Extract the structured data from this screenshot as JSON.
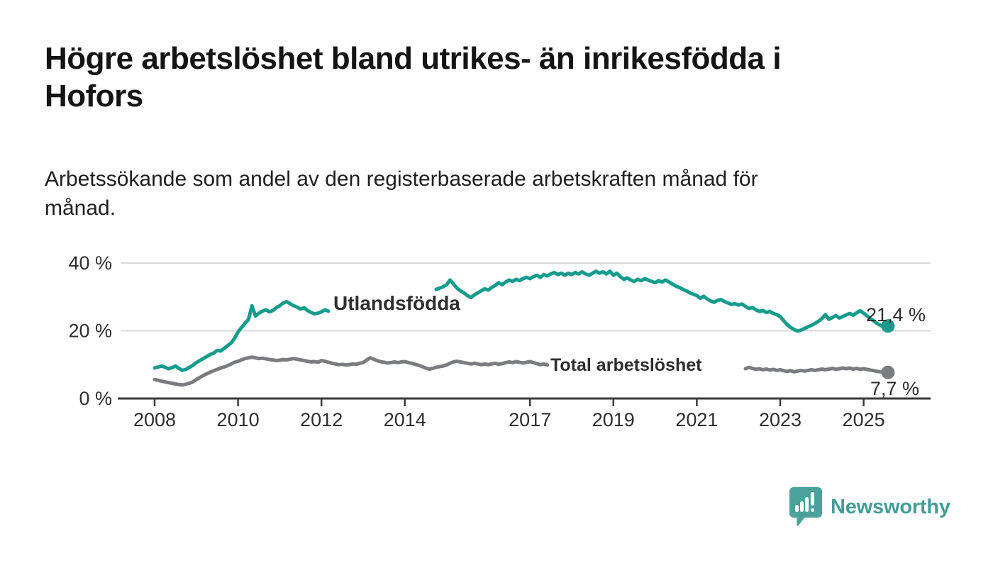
{
  "header": {
    "title_lines": [
      "Högre arbetslöshet bland utrikes- än inrikesfödda i",
      "Hofors"
    ],
    "subtitle_lines": [
      "Arbetssökande som andel av den registerbaserade arbetskraften månad för",
      "månad."
    ]
  },
  "footer": {
    "brand": "Newsworthy",
    "brand_color": "#419e97",
    "logo_icon": "speech-bubble-with-bar-chart"
  },
  "chart_data": {
    "type": "line",
    "title": "Högre arbetslöshet bland utrikes- än inrikesfödda i Hofors",
    "subtitle": "Arbetssökande som andel av den registerbaserade arbetskraften månad för månad.",
    "x_start": "2008-01",
    "x_end": "2025-08",
    "x_interval": "monthly",
    "x_ticks": [
      "2008",
      "2010",
      "2012",
      "2014",
      "2017",
      "2019",
      "2021",
      "2023",
      "2025"
    ],
    "y_ticks": [
      "0 %",
      "20 %",
      "40 %"
    ],
    "y_tick_values": [
      0,
      20,
      40
    ],
    "ylim": [
      0,
      40
    ],
    "y_unit": "%",
    "grid": "horizontal",
    "legend": "inline-labels-on-lines",
    "colors": {
      "axis": "#3b3b3b",
      "gridline": "#d8d8d8",
      "value_label": "#1c1c1c"
    },
    "series": [
      {
        "name": "Utlandsfödda",
        "color": "#169c8d",
        "end_label": "21,4 %",
        "end_value": 21.4,
        "label_gap": [
          51,
          80
        ],
        "values": [
          9.0,
          9.3,
          9.6,
          9.2,
          8.8,
          9.1,
          9.6,
          8.9,
          8.3,
          8.6,
          9.2,
          9.8,
          10.6,
          11.2,
          11.8,
          12.4,
          13.0,
          13.4,
          14.2,
          14.0,
          14.8,
          15.6,
          16.4,
          17.8,
          19.6,
          21.0,
          22.2,
          23.3,
          27.4,
          24.4,
          25.2,
          25.8,
          26.2,
          25.6,
          26.0,
          26.8,
          27.4,
          28.2,
          28.6,
          28.0,
          27.4,
          27.0,
          26.4,
          26.8,
          26.0,
          25.4,
          25.0,
          25.2,
          25.6,
          26.2,
          25.8,
          26.4,
          26.0,
          26.6,
          27.2,
          26.8,
          27.4,
          27.0,
          27.6,
          28.0,
          28.4,
          28.8,
          28.4,
          29.0,
          29.6,
          29.2,
          29.8,
          30.2,
          29.8,
          30.4,
          30.0,
          30.6,
          30.2,
          30.8,
          31.2,
          30.8,
          31.4,
          31.0,
          31.6,
          32.0,
          31.6,
          32.2,
          32.6,
          33.0,
          33.6,
          35.0,
          33.8,
          32.6,
          31.8,
          31.2,
          30.4,
          29.8,
          30.6,
          31.2,
          31.8,
          32.4,
          32.0,
          32.8,
          33.4,
          34.2,
          33.6,
          34.4,
          35.0,
          34.6,
          35.2,
          34.8,
          35.4,
          35.8,
          35.4,
          36.0,
          36.4,
          35.8,
          36.6,
          36.2,
          36.8,
          37.2,
          36.6,
          37.0,
          36.4,
          37.0,
          36.6,
          37.2,
          36.8,
          37.4,
          36.8,
          36.4,
          37.0,
          37.6,
          37.0,
          37.4,
          36.8,
          37.6,
          36.4,
          37.0,
          36.0,
          35.2,
          35.6,
          35.0,
          34.6,
          35.2,
          34.8,
          35.4,
          35.0,
          34.6,
          34.2,
          34.8,
          34.4,
          35.0,
          34.4,
          33.8,
          33.2,
          32.8,
          32.2,
          31.8,
          31.2,
          30.8,
          30.4,
          29.6,
          30.2,
          29.4,
          28.8,
          28.4,
          29.0,
          29.2,
          28.6,
          28.2,
          27.8,
          28.0,
          27.6,
          27.9,
          27.2,
          26.6,
          26.9,
          26.2,
          25.7,
          26.0,
          25.4,
          25.7,
          25.1,
          24.8,
          24.2,
          23.0,
          21.8,
          21.0,
          20.4,
          19.9,
          20.2,
          20.7,
          21.2,
          21.6,
          22.2,
          22.8,
          23.6,
          24.8,
          23.4,
          23.9,
          24.5,
          23.8,
          24.2,
          24.7,
          25.1,
          24.6,
          25.3,
          25.9,
          25.2,
          24.4,
          23.6,
          22.8,
          22.1,
          21.5,
          21.1,
          21.4
        ]
      },
      {
        "name": "Total arbetslöshet",
        "color": "#7b7c80",
        "end_label": "7,7 %",
        "end_value": 7.7,
        "label_gap": [
          114,
          169
        ],
        "values": [
          5.6,
          5.4,
          5.1,
          4.9,
          4.7,
          4.5,
          4.3,
          4.1,
          4.0,
          4.2,
          4.5,
          4.9,
          5.6,
          6.2,
          6.8,
          7.3,
          7.8,
          8.2,
          8.6,
          9.0,
          9.3,
          9.7,
          10.2,
          10.7,
          11.0,
          11.4,
          11.8,
          12.0,
          12.2,
          12.0,
          11.8,
          11.9,
          11.7,
          11.5,
          11.4,
          11.2,
          11.3,
          11.5,
          11.4,
          11.6,
          11.8,
          11.6,
          11.4,
          11.2,
          11.0,
          10.8,
          10.9,
          10.7,
          11.2,
          11.0,
          10.7,
          10.4,
          10.2,
          10.0,
          10.1,
          9.9,
          10.0,
          10.2,
          10.1,
          10.4,
          10.6,
          11.4,
          12.0,
          11.6,
          11.2,
          10.9,
          10.7,
          10.5,
          10.6,
          10.8,
          10.6,
          10.8,
          10.9,
          10.6,
          10.4,
          10.1,
          9.8,
          9.4,
          9.0,
          8.7,
          8.9,
          9.2,
          9.4,
          9.6,
          9.9,
          10.4,
          10.8,
          11.0,
          10.8,
          10.6,
          10.4,
          10.2,
          10.4,
          10.2,
          10.0,
          10.2,
          10.0,
          10.2,
          10.4,
          10.1,
          10.3,
          10.6,
          10.8,
          10.6,
          10.9,
          10.7,
          10.5,
          10.7,
          10.9,
          10.6,
          10.3,
          10.0,
          10.2,
          9.9,
          9.7,
          9.9,
          9.6,
          9.8,
          9.5,
          9.7,
          9.5,
          9.7,
          9.4,
          9.6,
          9.3,
          9.5,
          9.2,
          9.4,
          9.1,
          9.3,
          9.0,
          9.2,
          9.0,
          9.2,
          8.9,
          9.1,
          8.8,
          9.0,
          8.7,
          8.9,
          9.1,
          8.8,
          9.0,
          9.2,
          9.4,
          9.6,
          9.8,
          10.0,
          9.8,
          9.6,
          9.8,
          9.5,
          9.7,
          9.4,
          9.6,
          9.3,
          9.5,
          9.2,
          9.4,
          9.1,
          9.3,
          9.0,
          9.2,
          8.9,
          9.1,
          8.8,
          9.0,
          8.7,
          8.9,
          9.1,
          8.8,
          9.2,
          8.9,
          8.6,
          8.8,
          8.5,
          8.7,
          8.4,
          8.6,
          8.3,
          8.5,
          8.2,
          8.0,
          8.2,
          7.9,
          8.1,
          8.3,
          8.1,
          8.3,
          8.5,
          8.3,
          8.5,
          8.7,
          8.5,
          8.7,
          8.9,
          8.6,
          8.8,
          9.0,
          8.8,
          9.0,
          8.7,
          8.9,
          8.6,
          8.8,
          8.6,
          8.4,
          8.2,
          8.0,
          7.9,
          7.8,
          7.7
        ]
      }
    ]
  }
}
